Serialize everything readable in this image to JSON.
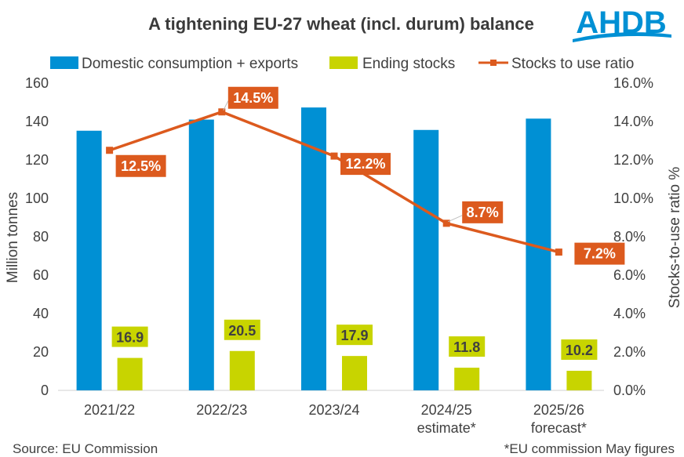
{
  "chart_data": {
    "type": "bar+line",
    "title": "A tightening EU-27 wheat (incl. durum) balance",
    "categories": [
      "2021/22",
      "2022/23",
      "2023/24",
      "2024/25",
      "2025/26"
    ],
    "category_sublabels": [
      "",
      "",
      "",
      "estimate*",
      "forecast*"
    ],
    "series": [
      {
        "name": "Domestic consumption + exports",
        "type": "bar",
        "axis": "left",
        "color": "#0090d4",
        "values": [
          135.2,
          141.0,
          147.3,
          135.6,
          141.5
        ]
      },
      {
        "name": "Ending stocks",
        "type": "bar",
        "axis": "left",
        "color": "#c8d400",
        "values": [
          16.9,
          20.5,
          17.9,
          11.8,
          10.2
        ],
        "labels": [
          "16.9",
          "20.5",
          "17.9",
          "11.8",
          "10.2"
        ]
      },
      {
        "name": "Stocks to use ratio",
        "type": "line",
        "axis": "right",
        "color": "#dc5a1e",
        "values": [
          12.5,
          14.5,
          12.2,
          8.7,
          7.2
        ],
        "labels": [
          "12.5%",
          "14.5%",
          "12.2%",
          "8.7%",
          "7.2%"
        ]
      }
    ],
    "ylabel_left": "Million tonnes",
    "ylim_left": [
      0,
      160
    ],
    "yticks_left": [
      "0",
      "20",
      "40",
      "60",
      "80",
      "100",
      "120",
      "140",
      "160"
    ],
    "ylabel_right": "Stocks-to-use ratio %",
    "ylim_right": [
      0,
      16
    ],
    "yticks_right": [
      "0.0%",
      "2.0%",
      "4.0%",
      "6.0%",
      "8.0%",
      "10.0%",
      "12.0%",
      "14.0%",
      "16.0%"
    ],
    "legend_position": "top",
    "grid": false
  },
  "logo": {
    "text": "AHDB",
    "color": "#0090d4"
  },
  "footer": {
    "source": "Source: EU Commission",
    "note": "*EU commission May figures"
  }
}
